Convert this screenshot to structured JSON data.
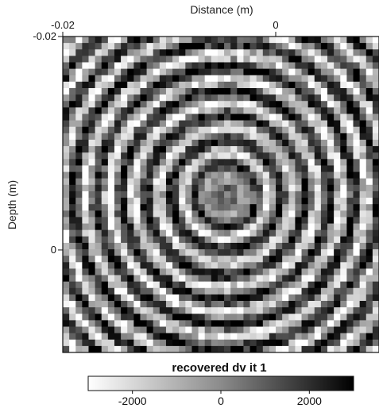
{
  "chart_data": {
    "type": "heatmap",
    "title": "",
    "xlabel": "Distance (m)",
    "ylabel": "Depth (m)",
    "x_ticks": [
      {
        "value": -0.02,
        "label": "-0.02"
      },
      {
        "value": 0,
        "label": "0"
      }
    ],
    "y_ticks": [
      {
        "value": -0.02,
        "label": "-0.02"
      },
      {
        "value": 0,
        "label": "0"
      }
    ],
    "x_axis_position": "top",
    "xlim": [
      -0.02,
      0.0097
    ],
    "ylim": [
      -0.02,
      0.0096
    ],
    "y_increases_downward": true,
    "grid": false,
    "colormap": {
      "title": "recovered dv it 1",
      "min": -3000,
      "max": 3000,
      "min_color": "#ffffff",
      "max_color": "#000000",
      "ticks": [
        {
          "value": -2000,
          "label": "-2000"
        },
        {
          "value": 0,
          "label": "0"
        },
        {
          "value": 2000,
          "label": "2000"
        }
      ]
    },
    "pattern": {
      "description": "concentric circular rings centered near the middle of the image",
      "center_x": -0.0047,
      "center_y": -0.0051,
      "ring_wavelength": 0.0023,
      "peak_amplitude": 2600
    }
  }
}
